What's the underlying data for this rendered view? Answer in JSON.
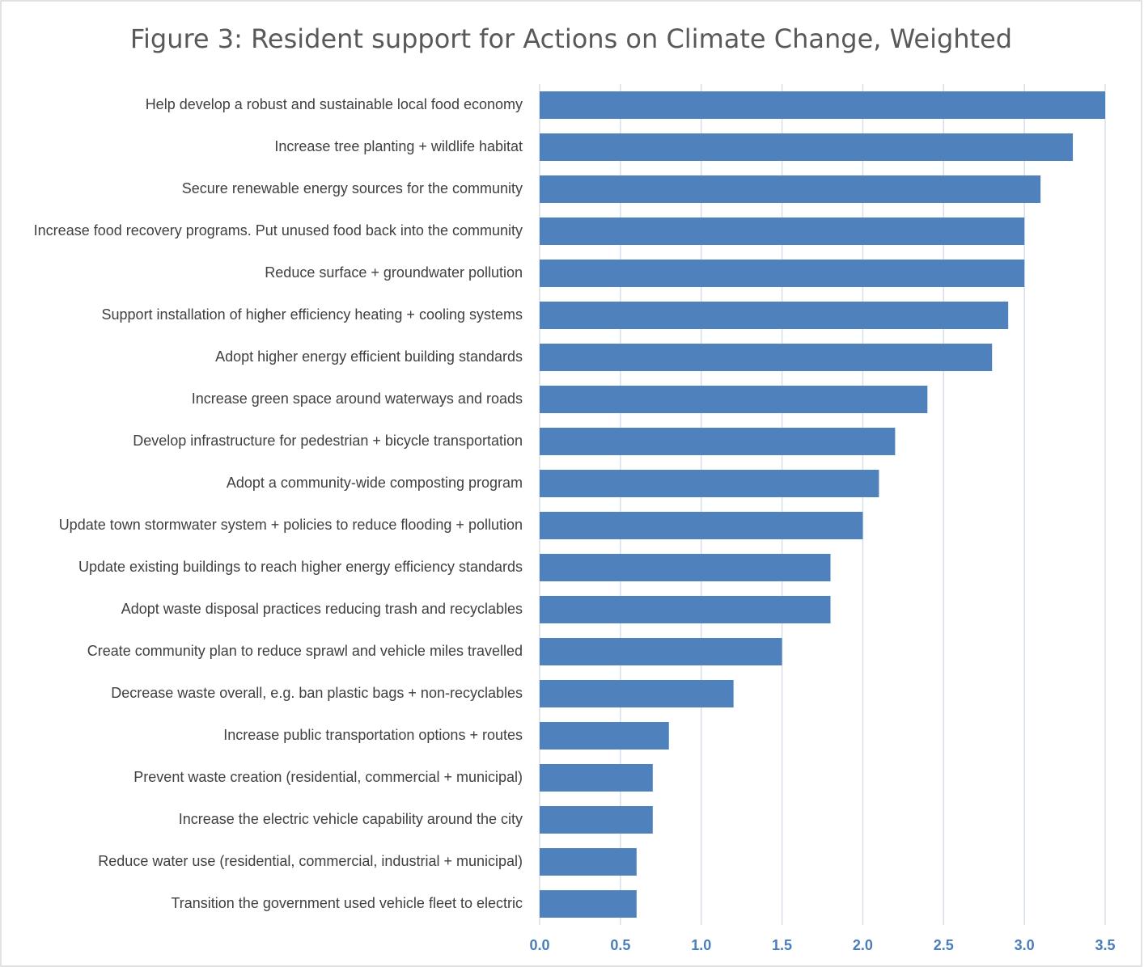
{
  "chart_data": {
    "type": "hbar",
    "title": "Figure 3: Resident support for Actions on Climate Change, Weighted",
    "categories": [
      "Help develop a robust and sustainable local food economy",
      "Increase tree planting + wildlife habitat",
      "Secure renewable energy sources for the community",
      "Increase food recovery programs. Put unused food back into the community",
      "Reduce surface + groundwater pollution",
      "Support installation of higher efficiency heating + cooling systems",
      "Adopt higher energy efficient building standards",
      "Increase green space around waterways and roads",
      "Develop infrastructure for pedestrian + bicycle transportation",
      "Adopt a community-wide composting program",
      "Update town stormwater system + policies to reduce flooding + pollution",
      "Update existing buildings to reach higher energy efficiency standards",
      "Adopt waste disposal practices reducing trash and recyclables",
      "Create community plan to reduce sprawl and vehicle miles travelled",
      "Decrease waste overall, e.g. ban plastic bags + non-recyclables",
      "Increase public transportation options + routes",
      "Prevent waste creation (residential, commercial + municipal)",
      "Increase the electric vehicle capability around the city",
      "Reduce water use (residential, commercial, industrial + municipal)",
      "Transition the government used vehicle fleet to electric"
    ],
    "values": [
      3.5,
      3.3,
      3.1,
      3.0,
      3.0,
      2.9,
      2.8,
      2.4,
      2.2,
      2.1,
      2.0,
      1.8,
      1.8,
      1.5,
      1.2,
      0.8,
      0.7,
      0.7,
      0.6,
      0.6
    ],
    "color": "#4f81bd",
    "xlim": [
      0,
      3.5
    ],
    "xticks": [
      {
        "value": 0,
        "label": "0.0"
      },
      0.5,
      {
        "value": 1,
        "label": "1.0"
      },
      1.5,
      {
        "value": 2,
        "label": "2.0"
      },
      2.5,
      {
        "value": 3,
        "label": "3.0"
      },
      3.5
    ],
    "grid": true
  }
}
